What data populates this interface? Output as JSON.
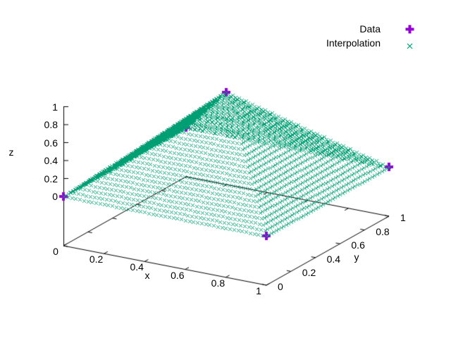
{
  "chart_data": {
    "type": "scatter",
    "subtype": "gnuplot-3d-splot",
    "title": "",
    "background": "#ffffff",
    "border_color": "#000000",
    "axes": {
      "x": {
        "label": "x",
        "range": [
          0,
          1
        ],
        "tick_values": [
          0,
          0.2,
          0.4,
          0.6,
          0.8,
          1
        ],
        "tick_labels": [
          "0",
          "0.2",
          "0.4",
          "0.6",
          "0.8",
          "1"
        ]
      },
      "y": {
        "label": "y",
        "range": [
          0,
          1
        ],
        "tick_values": [
          0,
          0.2,
          0.4,
          0.6,
          0.8,
          1
        ],
        "tick_labels": [
          "0",
          "0.2",
          "0.4",
          "0.6",
          "0.8",
          "1"
        ]
      },
      "z": {
        "label": "z",
        "range": [
          0,
          1
        ],
        "tick_values": [
          0,
          0.2,
          0.4,
          0.6,
          0.8,
          1
        ],
        "tick_labels": [
          "0",
          "0.2",
          "0.4",
          "0.6",
          "0.8",
          "1"
        ]
      }
    },
    "legend": {
      "position": "top-right",
      "entries": [
        {
          "label": "Data",
          "marker": "bold-plus",
          "color": "#9400d3"
        },
        {
          "label": "Interpolation",
          "marker": "cross",
          "color": "#009e73"
        }
      ]
    },
    "series": [
      {
        "name": "Data",
        "marker": "bold-plus",
        "color": "#9400d3",
        "points": [
          {
            "x": 0,
            "y": 0,
            "z": 0
          },
          {
            "x": 1,
            "y": 0,
            "z": 0
          },
          {
            "x": 0,
            "y": 1,
            "z": 0
          },
          {
            "x": 1,
            "y": 1,
            "z": 0
          },
          {
            "x": 0.5,
            "y": 0.5,
            "z": 1
          }
        ]
      },
      {
        "name": "Interpolation",
        "marker": "cross",
        "color": "#009e73",
        "grid": {
          "n": 51,
          "x_range": [
            0,
            1
          ],
          "y_range": [
            0,
            1
          ]
        },
        "function": "z = 1 - 2*max(|x-0.5|, |y-0.5|)"
      }
    ]
  }
}
